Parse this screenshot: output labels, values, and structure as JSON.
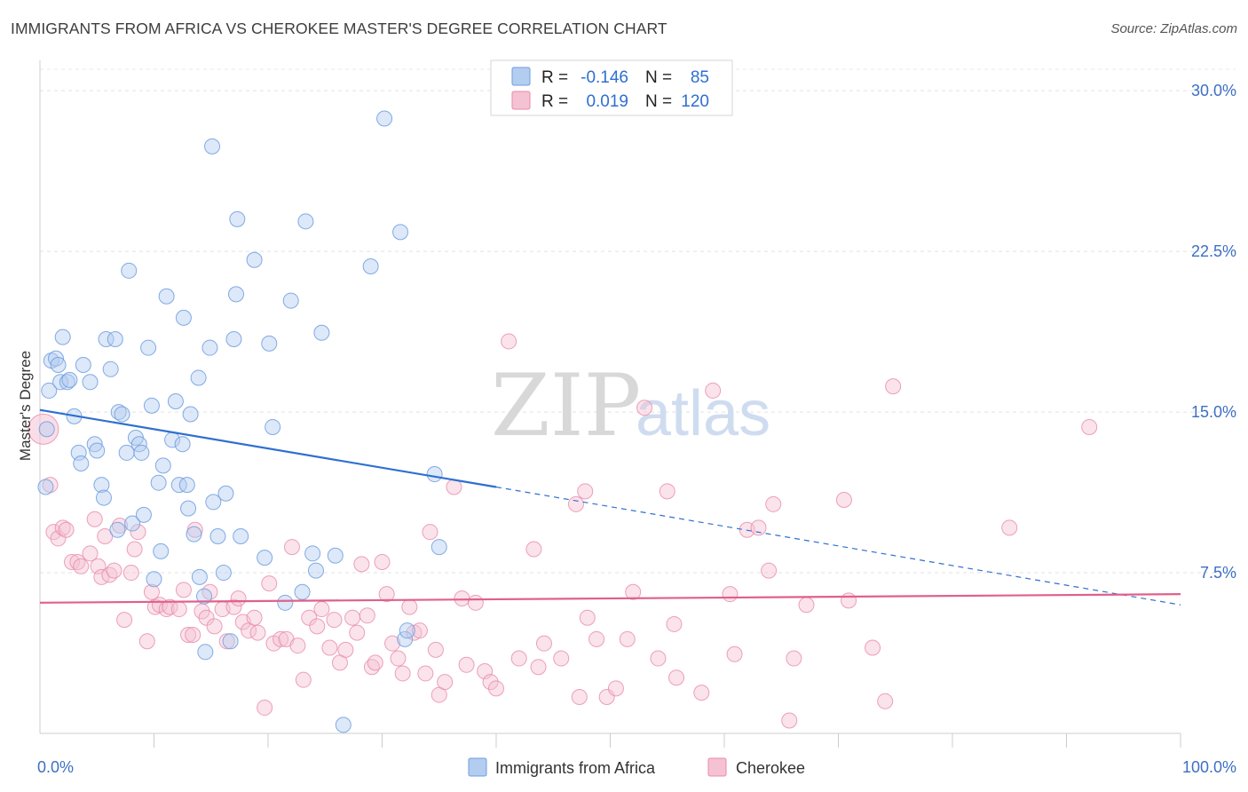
{
  "title": "IMMIGRANTS FROM AFRICA VS CHEROKEE MASTER'S DEGREE CORRELATION CHART",
  "source": "Source: ZipAtlas.com",
  "watermark": {
    "zip": "ZIP",
    "atlas": "atlas"
  },
  "legend_top": [
    {
      "r_label": "R =",
      "r_value": "-0.146",
      "n_label": "N =",
      "n_value": "85"
    },
    {
      "r_label": "R =",
      "r_value": "0.019",
      "n_label": "N =",
      "n_value": "120"
    }
  ],
  "legend_bottom": [
    "Immigrants from Africa",
    "Cherokee"
  ],
  "colors": {
    "africa": "#6d9de0",
    "africa_fill": "#b3cdf0",
    "cherokee": "#e98aaa",
    "cherokee_fill": "#f5c2d3",
    "africa_line": "#2f6fd0",
    "cherokee_line": "#e0608c"
  },
  "chart_data": {
    "type": "scatter",
    "ylabel": "Master's Degree",
    "xlim": [
      0,
      100
    ],
    "ylim": [
      0,
      31
    ],
    "yticks": [
      {
        "value": 7.5,
        "label": "7.5%"
      },
      {
        "value": 15.0,
        "label": "15.0%"
      },
      {
        "value": 22.5,
        "label": "22.5%"
      },
      {
        "value": 30.0,
        "label": "30.0%"
      }
    ],
    "xtick_labels": [
      {
        "value": 0,
        "label": "0.0%"
      },
      {
        "value": 100,
        "label": "100.0%"
      }
    ],
    "series": [
      {
        "name": "Immigrants from Africa",
        "trend": {
          "x0": 0,
          "y0": 15.1,
          "x1": 40,
          "y1": 11.5,
          "dash_to_x": 100,
          "dash_to_y": 6.0
        },
        "points": [
          [
            0.5,
            11.5
          ],
          [
            0.6,
            14.2
          ],
          [
            0.8,
            16.0
          ],
          [
            1.0,
            17.4
          ],
          [
            1.4,
            17.5
          ],
          [
            1.6,
            17.2
          ],
          [
            1.8,
            16.4
          ],
          [
            2.0,
            18.5
          ],
          [
            2.4,
            16.4
          ],
          [
            2.6,
            16.5
          ],
          [
            3.0,
            14.8
          ],
          [
            3.4,
            13.1
          ],
          [
            3.6,
            12.6
          ],
          [
            3.8,
            17.2
          ],
          [
            4.4,
            16.4
          ],
          [
            4.8,
            13.5
          ],
          [
            5.0,
            13.2
          ],
          [
            5.4,
            11.6
          ],
          [
            5.6,
            11.0
          ],
          [
            5.8,
            18.4
          ],
          [
            6.2,
            17.0
          ],
          [
            6.6,
            18.4
          ],
          [
            6.8,
            9.5
          ],
          [
            6.9,
            15.0
          ],
          [
            7.2,
            14.9
          ],
          [
            7.6,
            13.1
          ],
          [
            7.8,
            21.6
          ],
          [
            8.1,
            9.8
          ],
          [
            8.4,
            13.8
          ],
          [
            8.7,
            13.5
          ],
          [
            8.9,
            13.1
          ],
          [
            9.1,
            10.2
          ],
          [
            9.5,
            18.0
          ],
          [
            9.8,
            15.3
          ],
          [
            10.0,
            7.2
          ],
          [
            10.4,
            11.7
          ],
          [
            10.6,
            8.5
          ],
          [
            10.8,
            12.5
          ],
          [
            11.1,
            20.4
          ],
          [
            11.6,
            13.7
          ],
          [
            11.9,
            15.5
          ],
          [
            12.2,
            11.6
          ],
          [
            12.5,
            13.5
          ],
          [
            12.6,
            19.4
          ],
          [
            12.9,
            11.6
          ],
          [
            13.0,
            10.5
          ],
          [
            13.2,
            14.9
          ],
          [
            13.5,
            9.3
          ],
          [
            13.9,
            16.6
          ],
          [
            14.0,
            7.3
          ],
          [
            14.4,
            6.4
          ],
          [
            14.5,
            3.8
          ],
          [
            14.9,
            18.0
          ],
          [
            15.1,
            27.4
          ],
          [
            15.2,
            10.8
          ],
          [
            15.6,
            9.2
          ],
          [
            16.1,
            7.5
          ],
          [
            16.3,
            11.2
          ],
          [
            16.7,
            4.3
          ],
          [
            17.0,
            18.4
          ],
          [
            17.2,
            20.5
          ],
          [
            17.3,
            24.0
          ],
          [
            17.6,
            9.2
          ],
          [
            18.8,
            22.1
          ],
          [
            19.7,
            8.2
          ],
          [
            20.1,
            18.2
          ],
          [
            20.4,
            14.3
          ],
          [
            21.5,
            6.1
          ],
          [
            22.0,
            20.2
          ],
          [
            23.0,
            6.6
          ],
          [
            23.3,
            23.9
          ],
          [
            23.9,
            8.4
          ],
          [
            24.2,
            7.6
          ],
          [
            24.7,
            18.7
          ],
          [
            25.9,
            8.3
          ],
          [
            26.6,
            0.4
          ],
          [
            29.0,
            21.8
          ],
          [
            30.2,
            28.7
          ],
          [
            31.6,
            23.4
          ],
          [
            32.0,
            4.4
          ],
          [
            32.2,
            4.8
          ],
          [
            34.6,
            12.1
          ],
          [
            35.0,
            8.7
          ]
        ]
      },
      {
        "name": "Cherokee",
        "trend": {
          "x0": 0,
          "y0": 6.1,
          "x1": 100,
          "y1": 6.5
        },
        "points": [
          [
            0.3,
            14.2
          ],
          [
            0.9,
            11.6
          ],
          [
            1.2,
            9.4
          ],
          [
            1.6,
            9.1
          ],
          [
            2.0,
            9.6
          ],
          [
            2.3,
            9.5
          ],
          [
            2.8,
            8.0
          ],
          [
            3.3,
            8.0
          ],
          [
            3.6,
            7.8
          ],
          [
            4.4,
            8.4
          ],
          [
            4.8,
            10.0
          ],
          [
            5.1,
            7.8
          ],
          [
            5.4,
            7.3
          ],
          [
            5.7,
            9.2
          ],
          [
            6.1,
            7.4
          ],
          [
            6.5,
            7.6
          ],
          [
            7.0,
            9.7
          ],
          [
            7.4,
            5.3
          ],
          [
            8.0,
            7.5
          ],
          [
            8.3,
            8.6
          ],
          [
            8.6,
            9.4
          ],
          [
            9.4,
            4.3
          ],
          [
            9.8,
            6.6
          ],
          [
            10.1,
            5.9
          ],
          [
            10.5,
            6.0
          ],
          [
            11.1,
            5.8
          ],
          [
            11.4,
            5.9
          ],
          [
            12.2,
            5.8
          ],
          [
            12.6,
            6.7
          ],
          [
            13.0,
            4.6
          ],
          [
            13.4,
            4.6
          ],
          [
            13.6,
            9.5
          ],
          [
            14.2,
            5.7
          ],
          [
            14.6,
            5.4
          ],
          [
            14.9,
            6.6
          ],
          [
            15.3,
            5.0
          ],
          [
            16.0,
            5.8
          ],
          [
            16.4,
            4.3
          ],
          [
            17.0,
            5.9
          ],
          [
            17.4,
            6.3
          ],
          [
            17.8,
            5.2
          ],
          [
            18.3,
            4.8
          ],
          [
            18.8,
            5.4
          ],
          [
            19.1,
            4.7
          ],
          [
            19.7,
            1.2
          ],
          [
            20.1,
            7.0
          ],
          [
            20.5,
            4.2
          ],
          [
            21.1,
            4.4
          ],
          [
            21.6,
            4.4
          ],
          [
            22.1,
            8.7
          ],
          [
            22.6,
            4.1
          ],
          [
            23.1,
            2.5
          ],
          [
            23.6,
            5.4
          ],
          [
            24.3,
            5.0
          ],
          [
            24.7,
            5.8
          ],
          [
            25.4,
            4.0
          ],
          [
            25.8,
            5.3
          ],
          [
            26.3,
            3.3
          ],
          [
            26.8,
            3.9
          ],
          [
            27.4,
            5.4
          ],
          [
            27.8,
            4.7
          ],
          [
            28.2,
            7.9
          ],
          [
            28.7,
            5.5
          ],
          [
            29.1,
            3.1
          ],
          [
            29.4,
            3.3
          ],
          [
            30.0,
            8.0
          ],
          [
            30.4,
            6.5
          ],
          [
            30.9,
            4.2
          ],
          [
            31.4,
            3.5
          ],
          [
            31.8,
            2.8
          ],
          [
            32.4,
            5.9
          ],
          [
            32.8,
            4.7
          ],
          [
            33.3,
            4.8
          ],
          [
            33.8,
            2.8
          ],
          [
            34.2,
            9.4
          ],
          [
            34.7,
            3.9
          ],
          [
            35.0,
            1.8
          ],
          [
            35.5,
            2.4
          ],
          [
            36.3,
            11.5
          ],
          [
            37.0,
            6.3
          ],
          [
            37.4,
            3.2
          ],
          [
            38.2,
            6.1
          ],
          [
            39.0,
            2.9
          ],
          [
            39.5,
            2.4
          ],
          [
            40.0,
            2.1
          ],
          [
            41.1,
            18.3
          ],
          [
            42.0,
            3.5
          ],
          [
            43.3,
            8.6
          ],
          [
            43.7,
            3.1
          ],
          [
            44.2,
            4.2
          ],
          [
            45.7,
            3.5
          ],
          [
            47.0,
            10.7
          ],
          [
            47.3,
            1.7
          ],
          [
            47.8,
            11.3
          ],
          [
            48.0,
            5.4
          ],
          [
            48.8,
            4.4
          ],
          [
            49.7,
            1.7
          ],
          [
            50.5,
            2.1
          ],
          [
            51.5,
            4.4
          ],
          [
            52.0,
            6.6
          ],
          [
            53.0,
            15.2
          ],
          [
            54.2,
            3.5
          ],
          [
            55.0,
            11.3
          ],
          [
            55.6,
            5.1
          ],
          [
            55.8,
            2.6
          ],
          [
            58.0,
            1.9
          ],
          [
            59.0,
            16.0
          ],
          [
            60.5,
            6.5
          ],
          [
            60.9,
            3.7
          ],
          [
            62.0,
            9.5
          ],
          [
            63.0,
            9.6
          ],
          [
            63.9,
            7.6
          ],
          [
            64.3,
            10.7
          ],
          [
            65.7,
            0.6
          ],
          [
            66.1,
            3.5
          ],
          [
            67.2,
            6.0
          ],
          [
            70.5,
            10.9
          ],
          [
            70.9,
            6.2
          ],
          [
            73.0,
            4.0
          ],
          [
            74.1,
            1.5
          ],
          [
            74.8,
            16.2
          ],
          [
            85.0,
            9.6
          ],
          [
            92.0,
            14.3
          ]
        ]
      }
    ]
  }
}
